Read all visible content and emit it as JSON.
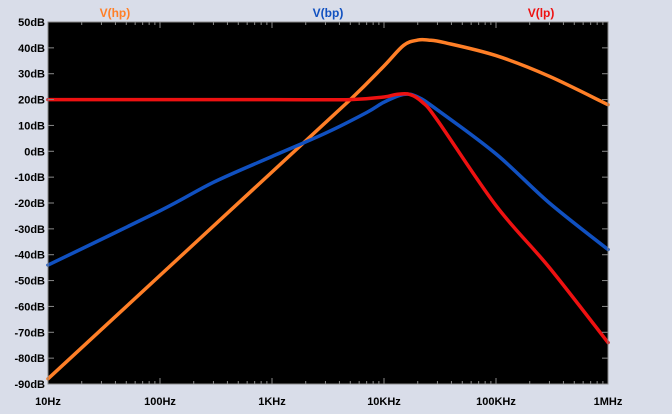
{
  "chart_data": {
    "type": "line",
    "title": "",
    "xlabel": "",
    "ylabel": "",
    "x_scale": "log",
    "x_range_hz": [
      10,
      1000000
    ],
    "ylim": [
      -90,
      50
    ],
    "grid": false,
    "legend_placement": "top",
    "y_ticks": [
      {
        "value": 50,
        "label": "50dB"
      },
      {
        "value": 40,
        "label": "40dB"
      },
      {
        "value": 30,
        "label": "30dB"
      },
      {
        "value": 20,
        "label": "20dB"
      },
      {
        "value": 10,
        "label": "10dB"
      },
      {
        "value": 0,
        "label": "0dB"
      },
      {
        "value": -10,
        "label": "-10dB"
      },
      {
        "value": -20,
        "label": "-20dB"
      },
      {
        "value": -30,
        "label": "-30dB"
      },
      {
        "value": -40,
        "label": "-40dB"
      },
      {
        "value": -50,
        "label": "-50dB"
      },
      {
        "value": -60,
        "label": "-60dB"
      },
      {
        "value": -70,
        "label": "-70dB"
      },
      {
        "value": -80,
        "label": "-80dB"
      },
      {
        "value": -90,
        "label": "-90dB"
      }
    ],
    "x_ticks": [
      {
        "value": 10,
        "label": "10Hz"
      },
      {
        "value": 100,
        "label": "100Hz"
      },
      {
        "value": 1000,
        "label": "1KHz"
      },
      {
        "value": 10000,
        "label": "10KHz"
      },
      {
        "value": 100000,
        "label": "100KHz"
      },
      {
        "value": 1000000,
        "label": "1MHz"
      }
    ],
    "series": [
      {
        "name": "V(hp)",
        "color": "#ff7f27",
        "points": [
          [
            10,
            -88
          ],
          [
            100,
            -48
          ],
          [
            1000,
            -8
          ],
          [
            5000,
            20
          ],
          [
            10000,
            33
          ],
          [
            15000,
            41
          ],
          [
            20000,
            43
          ],
          [
            25000,
            43
          ],
          [
            35000,
            42
          ],
          [
            100000,
            37
          ],
          [
            300000,
            29
          ],
          [
            1000000,
            18
          ]
        ]
      },
      {
        "name": "V(bp)",
        "color": "#1050c0",
        "points": [
          [
            10,
            -44
          ],
          [
            100,
            -23
          ],
          [
            300,
            -12
          ],
          [
            1000,
            -2
          ],
          [
            3000,
            7
          ],
          [
            7000,
            15
          ],
          [
            10000,
            19
          ],
          [
            15000,
            22
          ],
          [
            20000,
            21
          ],
          [
            30000,
            16
          ],
          [
            100000,
            -1
          ],
          [
            300000,
            -20
          ],
          [
            1000000,
            -38
          ]
        ]
      },
      {
        "name": "V(lp)",
        "color": "#ee1111",
        "points": [
          [
            10,
            20
          ],
          [
            1000,
            20
          ],
          [
            5000,
            20
          ],
          [
            10000,
            21
          ],
          [
            13000,
            22
          ],
          [
            17000,
            22
          ],
          [
            22000,
            19
          ],
          [
            30000,
            12
          ],
          [
            100000,
            -21
          ],
          [
            300000,
            -45
          ],
          [
            1000000,
            -74
          ]
        ]
      }
    ]
  }
}
